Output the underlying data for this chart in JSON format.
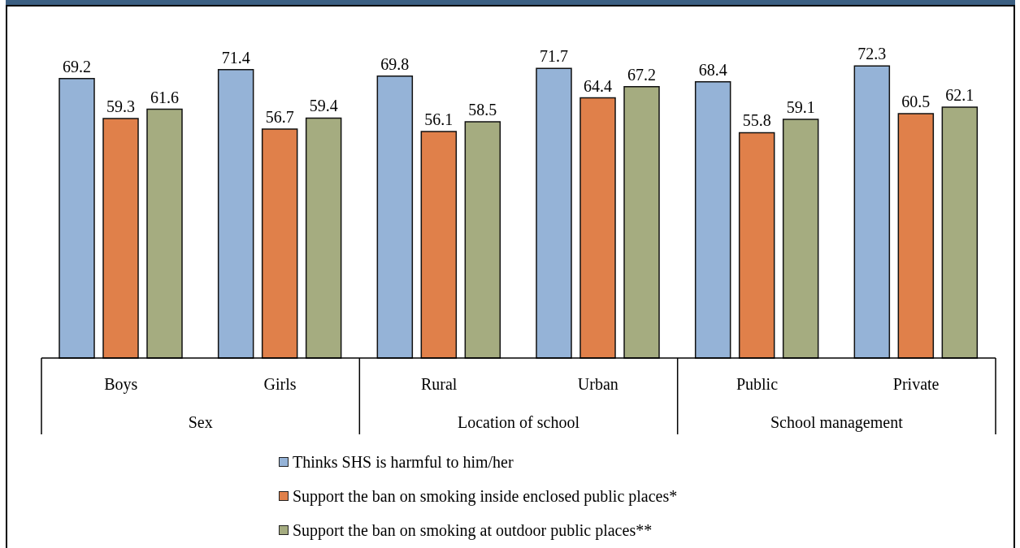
{
  "chart_data": {
    "type": "bar",
    "categories": [
      "Boys",
      "Girls",
      "Rural",
      "Urban",
      "Public",
      "Private"
    ],
    "series": [
      {
        "name": "Thinks SHS is harmful to him/her",
        "color": "#95b3d7",
        "values": [
          69.2,
          71.4,
          69.8,
          71.7,
          68.4,
          72.3
        ]
      },
      {
        "name": "Support the ban on smoking inside enclosed public places*",
        "color": "#e0804a",
        "values": [
          59.3,
          56.7,
          56.1,
          64.4,
          55.8,
          60.5
        ]
      },
      {
        "name": "Support the ban on smoking at outdoor public places**",
        "color": "#a5ac80",
        "values": [
          61.6,
          59.4,
          58.5,
          67.2,
          59.1,
          62.1
        ]
      }
    ],
    "data_labels": true,
    "legend": "bottom",
    "tick_labels": "x",
    "annotations": [
      "Sex",
      "Location of school",
      "School management"
    ]
  }
}
